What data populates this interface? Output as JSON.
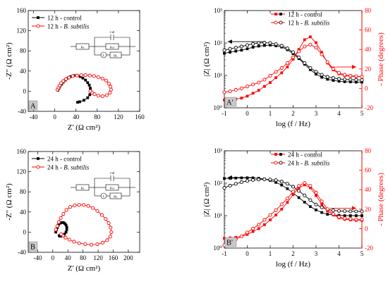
{
  "chart_data": [
    {
      "panel_letter": "A",
      "type": "scatter",
      "xlabel": "Z' (Ω cm²)",
      "ylabel": "-Z\" (Ω cm²)",
      "xlim": [
        -50,
        160
      ],
      "ylim": [
        -40,
        160
      ],
      "xticks": [
        -40,
        0,
        40,
        80,
        120,
        160
      ],
      "yticks": [
        -40,
        0,
        40,
        80,
        120,
        160
      ],
      "legend": "top-left",
      "inset": "equivalent-circuit",
      "circuit_labels": {
        "rs": "Rs",
        "cdl": "Cdl",
        "rct": "Rct",
        "l": "L",
        "rl": "RL"
      },
      "series": [
        {
          "name": "12 h - control",
          "color": "#000000",
          "marker": "square",
          "x": [
            6,
            8,
            10,
            13,
            16,
            20,
            25,
            30,
            36,
            42,
            48,
            53,
            58,
            62,
            65,
            67,
            68,
            66,
            62,
            55,
            47,
            43
          ],
          "y": [
            2,
            6,
            10,
            14,
            18,
            22,
            26,
            29,
            31,
            31,
            29,
            26,
            22,
            17,
            12,
            6,
            0,
            -7,
            -13,
            -18,
            -21,
            -22
          ]
        },
        {
          "name": "12 h - B. subtilis",
          "color": "#ff0000",
          "marker": "circle-open",
          "x": [
            5,
            7,
            9,
            12,
            16,
            21,
            27,
            34,
            42,
            50,
            58,
            66,
            74,
            82,
            90,
            97,
            102,
            105,
            106,
            104,
            98,
            90,
            82,
            75,
            70,
            67
          ],
          "y": [
            3,
            7,
            11,
            16,
            20,
            24,
            27,
            30,
            31,
            32,
            32,
            31,
            30,
            28,
            25,
            21,
            15,
            9,
            3,
            -3,
            -8,
            -10,
            -9,
            -6,
            -3,
            0
          ]
        }
      ]
    },
    {
      "panel_letter": "A'",
      "type": "line",
      "xlabel": "log (f / Hz)",
      "ylabel": "|Z| (Ω cm²)",
      "ylabel_right": "- Phase (degrees)",
      "xlim": [
        -1,
        5
      ],
      "xticks": [
        -1,
        0,
        1,
        2,
        3,
        4,
        5
      ],
      "ylim_log": [
        1,
        1000
      ],
      "yticks_log": [
        1,
        10,
        100,
        1000
      ],
      "yticks_log_labels": [
        "10⁰",
        "10¹",
        "10²",
        "10³"
      ],
      "ylim_right": [
        -20,
        80
      ],
      "yticks_right": [
        -20,
        0,
        20,
        40,
        60,
        80
      ],
      "legend": "top-right",
      "arrows": [
        {
          "axis": "left",
          "y": 110,
          "from_x": 0.7,
          "to_x": -0.85
        },
        {
          "axis": "right",
          "y": 22,
          "from_x": 3.6,
          "to_x": 4.75
        }
      ],
      "x": [
        -1,
        -0.75,
        -0.5,
        -0.25,
        0,
        0.25,
        0.5,
        0.75,
        1,
        1.25,
        1.5,
        1.75,
        2,
        2.25,
        2.5,
        2.75,
        3,
        3.25,
        3.5,
        3.75,
        4,
        4.25,
        4.5,
        4.75,
        5
      ],
      "series": [
        {
          "name": "12 h - control",
          "axis": "left",
          "color": "#000000",
          "marker": "square",
          "values": [
            48,
            52,
            56,
            60,
            66,
            74,
            80,
            84,
            86,
            82,
            75,
            62,
            47,
            33,
            22,
            15,
            11,
            8.8,
            7.6,
            7,
            6.6,
            6.4,
            6.3,
            6.2,
            6.2
          ]
        },
        {
          "name": "12 h - B. subtilis",
          "axis": "left",
          "color": "#000000",
          "marker": "circle-open",
          "values": [
            60,
            66,
            72,
            78,
            86,
            94,
            100,
            102,
            100,
            92,
            82,
            68,
            52,
            36,
            24,
            17,
            13,
            10.5,
            9,
            8.3,
            7.8,
            7.5,
            7.4,
            7.3,
            7.2
          ]
        },
        {
          "name": "",
          "axis": "right",
          "color": "#ff0000",
          "marker": "square",
          "values": [
            -12,
            -11.5,
            -11,
            -10,
            -8,
            -5,
            -2,
            2,
            6,
            11,
            16,
            22,
            30,
            40,
            50,
            53,
            47,
            37,
            26,
            19,
            15,
            13,
            12.5,
            12,
            12
          ]
        },
        {
          "name": "",
          "axis": "right",
          "color": "#ff0000",
          "marker": "circle-open",
          "values": [
            -4,
            -3,
            -1.5,
            0,
            2,
            4,
            6,
            9,
            13,
            17,
            21,
            26,
            32,
            38,
            43,
            45,
            42,
            35,
            27,
            20,
            16,
            14,
            13,
            12.5,
            12
          ]
        }
      ]
    },
    {
      "panel_letter": "B",
      "type": "scatter",
      "xlabel": "Z' (Ω cm²)",
      "ylabel": "-Z\" (Ω cm²)",
      "xlim": [
        -65,
        230
      ],
      "ylim": [
        -40,
        160
      ],
      "xticks": [
        -40,
        0,
        40,
        80,
        120,
        160,
        200
      ],
      "yticks": [
        -40,
        0,
        40,
        80,
        120,
        160
      ],
      "legend": "top-left",
      "inset": "equivalent-circuit",
      "circuit_labels": {
        "rs": "Rs",
        "cdl": "Cdl",
        "rct": "Rct",
        "l": "L",
        "rl": "RL"
      },
      "series": [
        {
          "name": "24 h - control",
          "color": "#000000",
          "marker": "square",
          "x": [
            8,
            10,
            12,
            14,
            16,
            20,
            24,
            28,
            32,
            35,
            37,
            37,
            35,
            31,
            26,
            22,
            19,
            17
          ],
          "y": [
            0,
            5,
            9,
            13,
            16,
            18,
            19,
            19,
            17,
            14,
            10,
            5,
            0,
            -4,
            -7,
            -8,
            -8,
            -7
          ]
        },
        {
          "name": "24 h - B. subtilis",
          "color": "#ff0000",
          "marker": "circle-open",
          "x": [
            8,
            12,
            16,
            21,
            28,
            36,
            46,
            58,
            70,
            82,
            94,
            106,
            118,
            130,
            140,
            148,
            153,
            155,
            152,
            144,
            132,
            118,
            102,
            86,
            70,
            56,
            44,
            34,
            27,
            22
          ],
          "y": [
            5,
            12,
            20,
            28,
            36,
            44,
            50,
            53,
            54,
            54,
            52,
            48,
            42,
            34,
            26,
            18,
            9,
            0,
            -9,
            -16,
            -21,
            -24,
            -25,
            -24,
            -22,
            -19,
            -15,
            -11,
            -7,
            -4
          ]
        }
      ]
    },
    {
      "panel_letter": "B'",
      "type": "line",
      "xlabel": "log (f / Hz)",
      "ylabel": "|Z| (Ω cm²)",
      "ylabel_right": "- Phase (degrees)",
      "xlim": [
        -1,
        5
      ],
      "xticks": [
        -1,
        0,
        1,
        2,
        3,
        4,
        5
      ],
      "ylim_log": [
        1,
        1000
      ],
      "yticks_log": [
        1,
        10,
        100,
        1000
      ],
      "yticks_log_labels": [
        "10⁰",
        "10¹",
        "10²",
        "10³"
      ],
      "ylim_right": [
        -20,
        80
      ],
      "yticks_right": [
        -20,
        0,
        20,
        40,
        60,
        80
      ],
      "legend": "top-right",
      "arrows": [
        {
          "axis": "left",
          "y": 150,
          "from_x": 0.3,
          "to_x": -0.85
        },
        {
          "axis": "right",
          "y": 21,
          "from_x": 3.6,
          "to_x": 4.75
        }
      ],
      "x": [
        -1,
        -0.75,
        -0.5,
        -0.25,
        0,
        0.25,
        0.5,
        0.75,
        1,
        1.25,
        1.5,
        1.75,
        2,
        2.25,
        2.5,
        2.75,
        3,
        3.25,
        3.5,
        3.75,
        4,
        4.25,
        4.5,
        4.75,
        5
      ],
      "series": [
        {
          "name": "24 h - control",
          "axis": "left",
          "color": "#000000",
          "marker": "square",
          "values": [
            140,
            142,
            144,
            146,
            147,
            146,
            142,
            134,
            122,
            106,
            88,
            68,
            50,
            36,
            26,
            19,
            15,
            12.5,
            11,
            10.5,
            10.2,
            10,
            10,
            10,
            10
          ]
        },
        {
          "name": "24 h - B. subtilis",
          "axis": "left",
          "color": "#000000",
          "marker": "circle-open",
          "values": [
            72,
            84,
            96,
            108,
            118,
            126,
            130,
            132,
            130,
            124,
            112,
            96,
            78,
            58,
            42,
            30,
            22,
            18,
            15.5,
            14.5,
            14,
            13.8,
            13.6,
            13.5,
            13.5
          ]
        },
        {
          "name": "",
          "axis": "right",
          "color": "#ff0000",
          "marker": "square",
          "values": [
            -10,
            -9.5,
            -9,
            -8,
            -6,
            -3,
            0,
            4,
            9,
            14,
            20,
            27,
            35,
            42,
            45,
            42,
            34,
            25,
            18,
            14,
            11,
            9.5,
            9,
            8.5,
            8.5
          ]
        },
        {
          "name": "",
          "axis": "right",
          "color": "#ff0000",
          "marker": "circle-open",
          "values": [
            -17,
            -14,
            -11,
            -8,
            -4,
            0,
            4,
            9,
            14,
            19,
            25,
            31,
            38,
            44,
            47,
            44,
            37,
            28,
            20,
            15,
            12,
            10.5,
            10,
            9.5,
            9.5
          ]
        }
      ]
    }
  ]
}
